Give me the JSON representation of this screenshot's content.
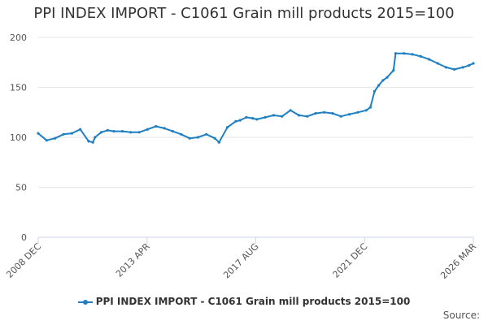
{
  "colors": {
    "series": "#1f7fc2",
    "gridline": "#e6e6e6",
    "axis": "#ccd6eb",
    "text": "#333333"
  },
  "chart_data": {
    "type": "line",
    "title": "PPI INDEX IMPORT - C1061 Grain mill products 2015=100",
    "xlabel": "",
    "ylabel": "",
    "ylim": [
      0,
      200
    ],
    "yticks": [
      0,
      50,
      100,
      150,
      200
    ],
    "xlim": [
      "2008-12",
      "2026-03"
    ],
    "xtick_labels": [
      "2008 DEC",
      "2013 APR",
      "2017 AUG",
      "2021 DEC",
      "2026 MAR"
    ],
    "grid": true,
    "legend": "bottom",
    "credits": "Source:",
    "series": [
      {
        "name": "PPI INDEX IMPORT - C1061 Grain mill products 2015=100",
        "x": [
          "2008-12",
          "2009-04",
          "2009-08",
          "2009-12",
          "2010-04",
          "2010-08",
          "2010-12",
          "2011-02",
          "2011-03",
          "2011-06",
          "2011-09",
          "2011-12",
          "2012-04",
          "2012-08",
          "2012-12",
          "2013-04",
          "2013-08",
          "2013-12",
          "2014-04",
          "2014-08",
          "2014-12",
          "2015-04",
          "2015-08",
          "2015-12",
          "2016-02",
          "2016-06",
          "2016-10",
          "2016-12",
          "2017-03",
          "2017-06",
          "2017-08",
          "2017-12",
          "2018-04",
          "2018-08",
          "2018-12",
          "2019-04",
          "2019-08",
          "2019-12",
          "2020-04",
          "2020-08",
          "2020-12",
          "2021-04",
          "2021-08",
          "2021-12",
          "2022-02",
          "2022-04",
          "2022-06",
          "2022-08",
          "2022-10",
          "2023-01",
          "2023-02",
          "2023-06",
          "2023-10",
          "2024-02",
          "2024-06",
          "2024-10",
          "2025-02",
          "2025-06",
          "2025-10",
          "2026-01",
          "2026-03"
        ],
        "values": [
          104,
          97,
          99,
          103,
          104,
          108,
          96,
          95,
          100,
          105,
          107,
          106,
          106,
          105,
          105,
          108,
          111,
          109,
          106,
          103,
          99,
          100,
          103,
          99,
          95,
          110,
          116,
          117,
          120,
          119,
          118,
          120,
          122,
          121,
          127,
          122,
          121,
          124,
          125,
          124,
          121,
          123,
          125,
          127,
          130,
          146,
          152,
          157,
          160,
          167,
          184,
          184,
          183,
          181,
          178,
          174,
          170,
          168,
          170,
          172,
          174
        ]
      }
    ]
  }
}
